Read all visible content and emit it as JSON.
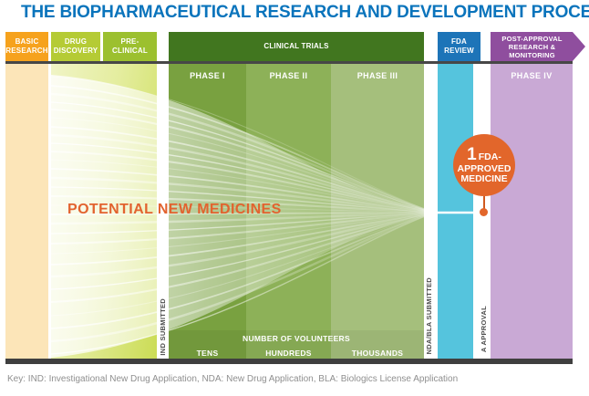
{
  "title": "THE BIOPHARMACEUTICAL RESEARCH AND DEVELOPMENT PROCESS",
  "stages": {
    "basic_research": {
      "header": "BASIC RESEARCH"
    },
    "drug_discovery": {
      "header": "DRUG DISCOVERY"
    },
    "pre_clinical": {
      "header": "PRE-CLINICAL"
    },
    "clinical_trials": {
      "header": "CLINICAL TRIALS",
      "phases": [
        "PHASE I",
        "PHASE II",
        "PHASE III"
      ]
    },
    "fda_review": {
      "header": "FDA REVIEW"
    },
    "post_approval": {
      "header": "POST-APPROVAL RESEARCH & MONITORING",
      "phase": "PHASE IV"
    }
  },
  "funnel": {
    "label": "POTENTIAL NEW MEDICINES"
  },
  "badge": {
    "number": "1",
    "suffix": "FDA-",
    "line2": "APPROVED",
    "line3": "MEDICINE"
  },
  "milestones": {
    "ind": "IND SUBMITTED",
    "nda_bla": "NDA/BLA SUBMITTED",
    "approval": "A APPROVAL"
  },
  "volunteers": {
    "heading": "NUMBER OF VOLUNTEERS",
    "counts": [
      "TENS",
      "HUNDREDS",
      "THOUSANDS"
    ]
  },
  "key_note": "Key: IND: Investigational New Drug Application, NDA: New Drug Application, BLA: Biologics License Application",
  "colors": {
    "title_blue": "#0A74BC",
    "basic_research_header": "#F6A21D",
    "basic_research_body": "#FCE5B8",
    "drug_discovery_header": "#B5CB35",
    "pre_clinical_header": "#9CC02F",
    "clinical_trials_header": "#41761F",
    "phase1_body": "#79A140",
    "phase2_body": "#8DB158",
    "phase3_body": "#A5BF7C",
    "fda_review_header": "#1D74B8",
    "fda_review_body": "#55C4DD",
    "post_approval_header": "#8F4E9E",
    "post_approval_body": "#C9A9D5",
    "accent_orange": "#E2662B",
    "bottom_bar": "#3F3F3F"
  }
}
